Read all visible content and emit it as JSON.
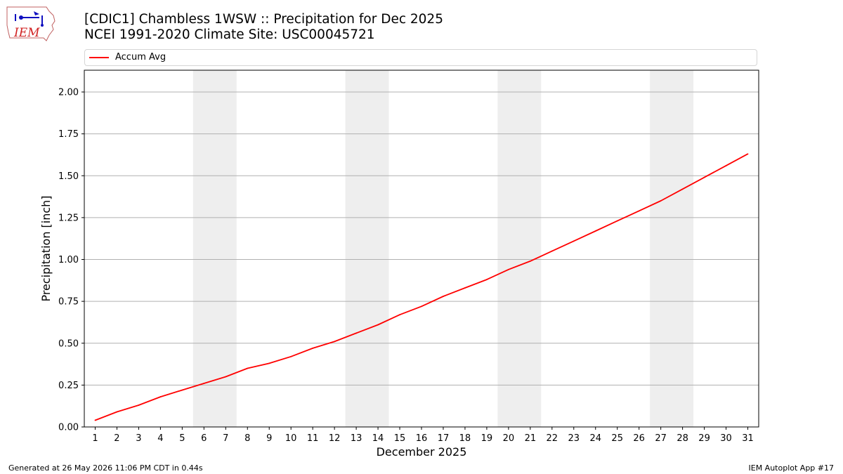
{
  "header": {
    "title_line1": "[CDIC1] Chambless 1WSW :: Precipitation for Dec 2025",
    "title_line2": "NCEI 1991-2020 Climate Site: USC00045721"
  },
  "logo": {
    "text": "IEM",
    "icon": "iem-iowa-logo"
  },
  "footer": {
    "generated": "Generated at 26 May 2026 11:06 PM CDT in 0.44s",
    "app": "IEM Autoplot App #17"
  },
  "colors": {
    "series": "#ff0000",
    "weekend_band": "#eeeeee",
    "grid": "#b0b0b0"
  },
  "chart_data": {
    "type": "line",
    "title": "[CDIC1] Chambless 1WSW :: Precipitation for Dec 2025",
    "subtitle": "NCEI 1991-2020 Climate Site: USC00045721",
    "xlabel": "December 2025",
    "ylabel": "Precipitation [inch]",
    "x": [
      1,
      2,
      3,
      4,
      5,
      6,
      7,
      8,
      9,
      10,
      11,
      12,
      13,
      14,
      15,
      16,
      17,
      18,
      19,
      20,
      21,
      22,
      23,
      24,
      25,
      26,
      27,
      28,
      29,
      30,
      31
    ],
    "xlim": [
      0.5,
      31.5
    ],
    "ylim": [
      0,
      2.13
    ],
    "yticks": [
      0,
      0.25,
      0.5,
      0.75,
      1.0,
      1.25,
      1.5,
      1.75,
      2.0
    ],
    "ytick_labels": [
      "0.00",
      "0.25",
      "0.50",
      "0.75",
      "1.00",
      "1.25",
      "1.50",
      "1.75",
      "2.00"
    ],
    "grid": "horizontal",
    "legend": "top, outside plot",
    "shaded_days": [
      [
        6,
        7
      ],
      [
        13,
        14
      ],
      [
        20,
        21
      ],
      [
        27,
        28
      ]
    ],
    "series": [
      {
        "name": "Accum Avg",
        "color": "#ff0000",
        "values": [
          0.04,
          0.09,
          0.13,
          0.18,
          0.22,
          0.26,
          0.3,
          0.35,
          0.38,
          0.42,
          0.47,
          0.51,
          0.56,
          0.61,
          0.67,
          0.72,
          0.78,
          0.83,
          0.88,
          0.94,
          0.99,
          1.05,
          1.11,
          1.17,
          1.23,
          1.29,
          1.35,
          1.42,
          1.49,
          1.56,
          1.63
        ]
      }
    ]
  }
}
